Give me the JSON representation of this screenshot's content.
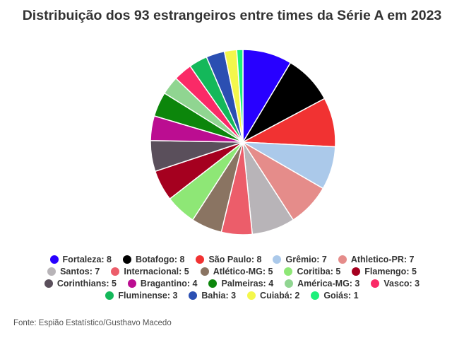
{
  "chart_data": {
    "type": "pie",
    "title": "Distribuição dos 93 estrangeiros entre times da Série A em 2023",
    "source": "Fonte: Espião Estatístico/Gusthavo Macedo",
    "legend_position": "bottom",
    "slices": [
      {
        "label": "Fortaleza",
        "value": 8,
        "color": "#2800ff"
      },
      {
        "label": "Botafogo",
        "value": 8,
        "color": "#000000"
      },
      {
        "label": "São Paulo",
        "value": 8,
        "color": "#f13232"
      },
      {
        "label": "Grêmio",
        "value": 7,
        "color": "#abc9ea"
      },
      {
        "label": "Athletico-PR",
        "value": 7,
        "color": "#e58c8a"
      },
      {
        "label": "Santos",
        "value": 7,
        "color": "#b8b4b8"
      },
      {
        "label": "Internacional",
        "value": 5,
        "color": "#ec5d6a"
      },
      {
        "label": "Atlético-MG",
        "value": 5,
        "color": "#8a7462"
      },
      {
        "label": "Coritiba",
        "value": 5,
        "color": "#8ee776"
      },
      {
        "label": "Flamengo",
        "value": 5,
        "color": "#a5001f"
      },
      {
        "label": "Corinthians",
        "value": 5,
        "color": "#5a4f5b"
      },
      {
        "label": "Bragantino",
        "value": 4,
        "color": "#bb0d91"
      },
      {
        "label": "Palmeiras",
        "value": 4,
        "color": "#0c860b"
      },
      {
        "label": "América-MG",
        "value": 3,
        "color": "#90d591"
      },
      {
        "label": "Vasco",
        "value": 3,
        "color": "#fa2a67"
      },
      {
        "label": "Fluminense",
        "value": 3,
        "color": "#14b85a"
      },
      {
        "label": "Bahia",
        "value": 3,
        "color": "#2b4fb2"
      },
      {
        "label": "Cuiabá",
        "value": 2,
        "color": "#f4f74b"
      },
      {
        "label": "Goiás",
        "value": 1,
        "color": "#1ef07a"
      }
    ]
  }
}
